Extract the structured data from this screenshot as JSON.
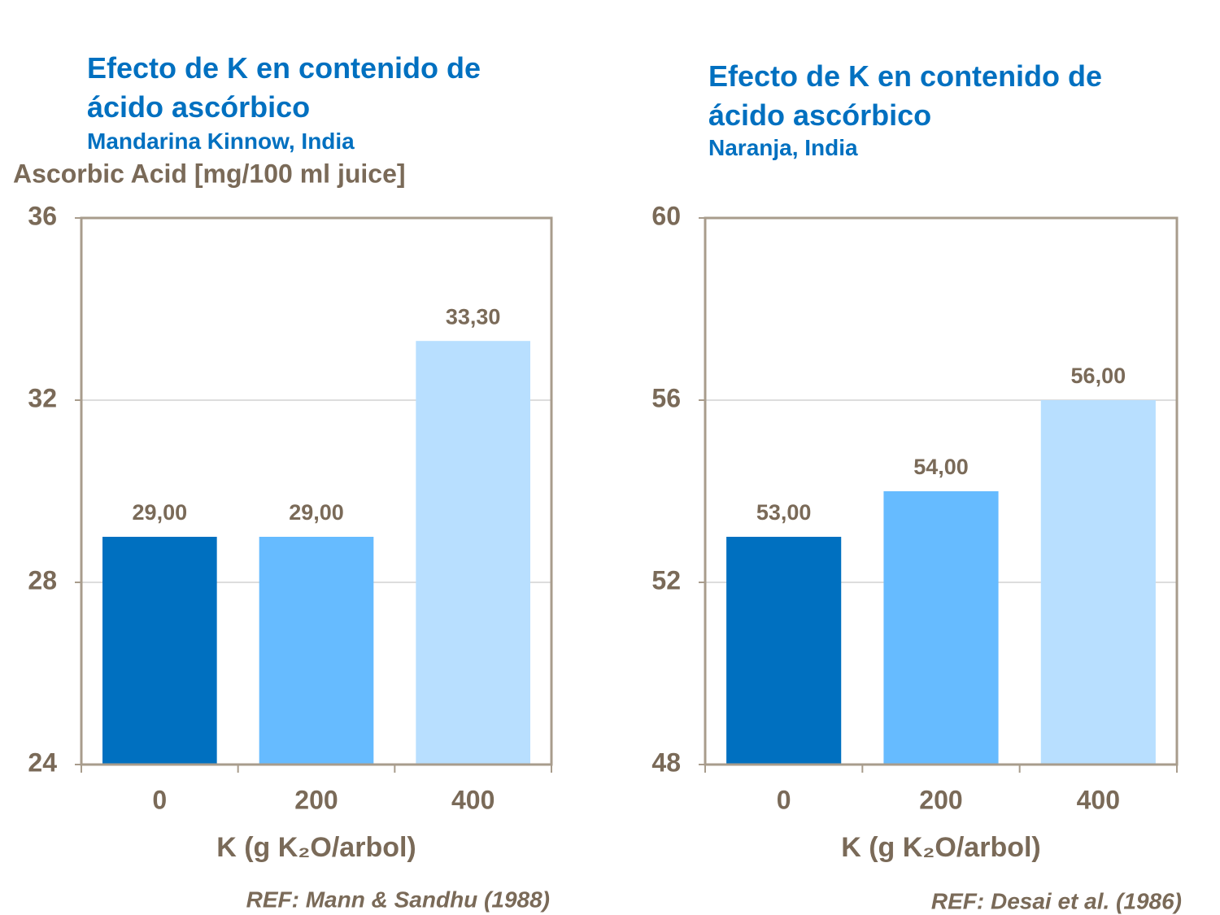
{
  "chart_data": [
    {
      "type": "bar",
      "title": "Efecto de K en contenido de ácido ascórbico",
      "subtitle": "Mandarina Kinnow, India",
      "y_label": "Ascorbic Acid [mg/100 ml juice]",
      "x_label": "K (g K₂O/arbol)",
      "categories": [
        "0",
        "200",
        "400"
      ],
      "values": [
        29,
        29,
        33.3
      ],
      "value_labels": [
        "29,00",
        "29,00",
        "33,30"
      ],
      "colors": [
        "#0070c0",
        "#66bbff",
        "#b8dfff"
      ],
      "ylim": [
        24,
        36
      ],
      "yticks": [
        24,
        28,
        32,
        36
      ],
      "grid": true,
      "source": "REF: Mann & Sandhu (1988)"
    },
    {
      "type": "bar",
      "title": "Efecto de K en contenido de ácido ascórbico",
      "subtitle": "Naranja, India",
      "x_label": "K (g K₂O/arbol)",
      "categories": [
        "0",
        "200",
        "400"
      ],
      "values": [
        53,
        54,
        56
      ],
      "value_labels": [
        "53,00",
        "54,00",
        "56,00"
      ],
      "colors": [
        "#0070c0",
        "#66bbff",
        "#b8dfff"
      ],
      "ylim": [
        48,
        60
      ],
      "yticks": [
        48,
        52,
        56,
        60
      ],
      "grid": true,
      "source": "REF: Desai et al. (1986)"
    }
  ]
}
